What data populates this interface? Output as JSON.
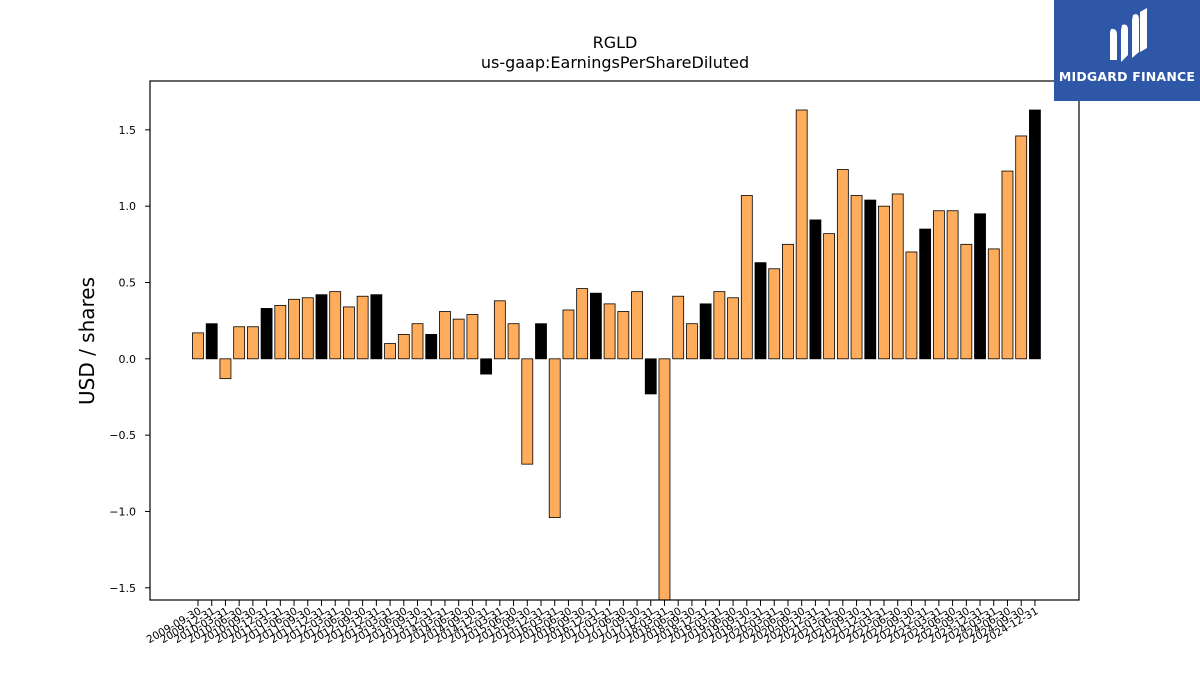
{
  "brand": {
    "name": "MIDGARD FINANCE",
    "logo_icon": "midgard-m-logo-icon",
    "background": "#2e57a8"
  },
  "chart_data": {
    "type": "bar",
    "title": "RGLD",
    "subtitle": "us-gaap:EarningsPerShareDiluted",
    "xlabel": "",
    "ylabel": "USD / shares",
    "ylim": [
      -1.58,
      1.82
    ],
    "yticks": [
      -1.5,
      -1.0,
      -0.5,
      0.0,
      0.5,
      1.0,
      1.5
    ],
    "ytick_labels": [
      "−1.5",
      "−1.0",
      "−0.5",
      "0.0",
      "0.5",
      "1.0",
      "1.5"
    ],
    "grid": false,
    "legend": "none",
    "colors": {
      "quarter": "#ffad5c",
      "annual": "#000000",
      "edge": "#000000"
    },
    "categories": [
      "2009-09-30",
      "2009-12-31",
      "2010-03-31",
      "2010-06-30",
      "2010-09-30",
      "2010-12-31",
      "2011-03-31",
      "2011-06-30",
      "2011-09-30",
      "2011-12-31",
      "2012-03-31",
      "2012-06-30",
      "2012-09-30",
      "2012-12-31",
      "2013-03-31",
      "2013-06-30",
      "2013-09-30",
      "2013-12-31",
      "2014-03-31",
      "2014-06-30",
      "2014-09-30",
      "2014-12-31",
      "2015-03-31",
      "2015-06-30",
      "2015-09-30",
      "2015-12-31",
      "2016-03-31",
      "2016-06-30",
      "2016-09-30",
      "2016-12-31",
      "2017-03-31",
      "2017-06-30",
      "2017-09-30",
      "2017-12-31",
      "2018-03-31",
      "2018-06-30",
      "2018-09-30",
      "2018-12-31",
      "2019-03-31",
      "2019-06-30",
      "2019-09-30",
      "2019-12-31",
      "2020-03-31",
      "2020-06-30",
      "2020-09-30",
      "2020-12-31",
      "2021-03-31",
      "2021-06-30",
      "2021-09-30",
      "2021-12-31",
      "2022-03-31",
      "2022-06-30",
      "2022-09-30",
      "2022-12-31",
      "2023-03-31",
      "2023-06-30",
      "2023-09-30",
      "2023-12-31",
      "2024-03-31",
      "2024-06-30",
      "2024-09-30",
      "2024-12-31"
    ],
    "values": [
      0.17,
      0.23,
      -0.13,
      0.21,
      0.21,
      0.33,
      0.35,
      0.39,
      0.4,
      0.42,
      0.44,
      0.34,
      0.41,
      0.42,
      0.1,
      0.16,
      0.23,
      0.16,
      0.31,
      0.26,
      0.29,
      -0.1,
      0.38,
      0.23,
      -0.69,
      0.23,
      -1.04,
      0.32,
      0.46,
      0.43,
      0.36,
      0.31,
      0.44,
      -0.23,
      -1.58,
      0.41,
      0.23,
      0.36,
      0.44,
      0.4,
      1.07,
      0.63,
      0.59,
      0.75,
      1.63,
      0.91,
      0.82,
      1.24,
      1.07,
      1.04,
      1.0,
      1.08,
      0.7,
      0.85,
      0.97,
      0.97,
      0.75,
      0.95,
      0.72,
      1.23,
      1.46,
      1.63
    ],
    "annual": [
      false,
      true,
      false,
      false,
      false,
      true,
      false,
      false,
      false,
      true,
      false,
      false,
      false,
      true,
      false,
      false,
      false,
      true,
      false,
      false,
      false,
      true,
      false,
      false,
      false,
      true,
      false,
      false,
      false,
      true,
      false,
      false,
      false,
      true,
      false,
      false,
      false,
      true,
      false,
      false,
      false,
      true,
      false,
      false,
      false,
      true,
      false,
      false,
      false,
      true,
      false,
      false,
      false,
      true,
      false,
      false,
      false,
      true,
      false,
      false,
      false,
      true
    ]
  }
}
